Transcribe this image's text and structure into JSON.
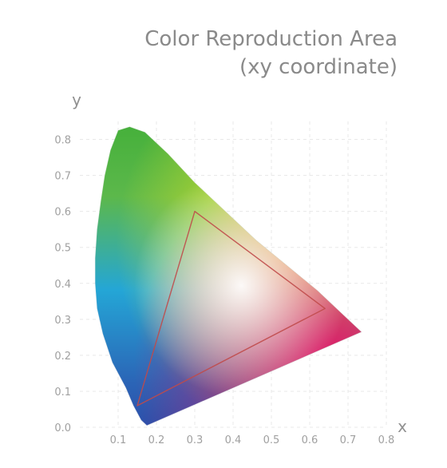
{
  "chart_data": {
    "type": "scatter",
    "title_lines": [
      "Color Reproduction Area",
      "(xy coordinate)"
    ],
    "xlabel": "x",
    "ylabel": "y",
    "xlim": [
      0,
      0.8
    ],
    "ylim": [
      0,
      0.85
    ],
    "x_ticks": [
      "0.1",
      "0.2",
      "0.3",
      "0.4",
      "0.5",
      "0.6",
      "0.7",
      "0.8"
    ],
    "y_ticks": [
      "0.0",
      "0.1",
      "0.2",
      "0.3",
      "0.4",
      "0.5",
      "0.6",
      "0.7",
      "0.8"
    ],
    "grid": true,
    "series": [
      {
        "kind": "spectral-locus",
        "color": "#1ea21e",
        "points": [
          {
            "x": 0.175,
            "y": 0.005
          },
          {
            "x": 0.16,
            "y": 0.02
          },
          {
            "x": 0.14,
            "y": 0.06
          },
          {
            "x": 0.12,
            "y": 0.11
          },
          {
            "x": 0.085,
            "y": 0.18
          },
          {
            "x": 0.06,
            "y": 0.26
          },
          {
            "x": 0.045,
            "y": 0.33
          },
          {
            "x": 0.04,
            "y": 0.4
          },
          {
            "x": 0.04,
            "y": 0.47
          },
          {
            "x": 0.045,
            "y": 0.55
          },
          {
            "x": 0.055,
            "y": 0.63
          },
          {
            "x": 0.065,
            "y": 0.7
          },
          {
            "x": 0.08,
            "y": 0.77
          },
          {
            "x": 0.1,
            "y": 0.825
          },
          {
            "x": 0.13,
            "y": 0.835
          },
          {
            "x": 0.17,
            "y": 0.82
          },
          {
            "x": 0.23,
            "y": 0.76
          },
          {
            "x": 0.3,
            "y": 0.68
          },
          {
            "x": 0.38,
            "y": 0.6
          },
          {
            "x": 0.46,
            "y": 0.52
          },
          {
            "x": 0.54,
            "y": 0.45
          },
          {
            "x": 0.62,
            "y": 0.38
          },
          {
            "x": 0.69,
            "y": 0.31
          },
          {
            "x": 0.735,
            "y": 0.265
          },
          {
            "x": 0.175,
            "y": 0.005
          }
        ]
      },
      {
        "kind": "gamut-triangle",
        "color": "#c04a4a",
        "points": [
          {
            "x": 0.64,
            "y": 0.33
          },
          {
            "x": 0.3,
            "y": 0.6
          },
          {
            "x": 0.15,
            "y": 0.06
          }
        ]
      }
    ],
    "colors": {
      "green": "#1ea21e",
      "cyan": "#24a6d6",
      "blue": "#2e3a9e",
      "magenta": "#e0147a",
      "red": "#e2143a",
      "yellow": "#f5e61c",
      "white": "#f6f3f2",
      "triangle": "#c04a4a"
    }
  }
}
